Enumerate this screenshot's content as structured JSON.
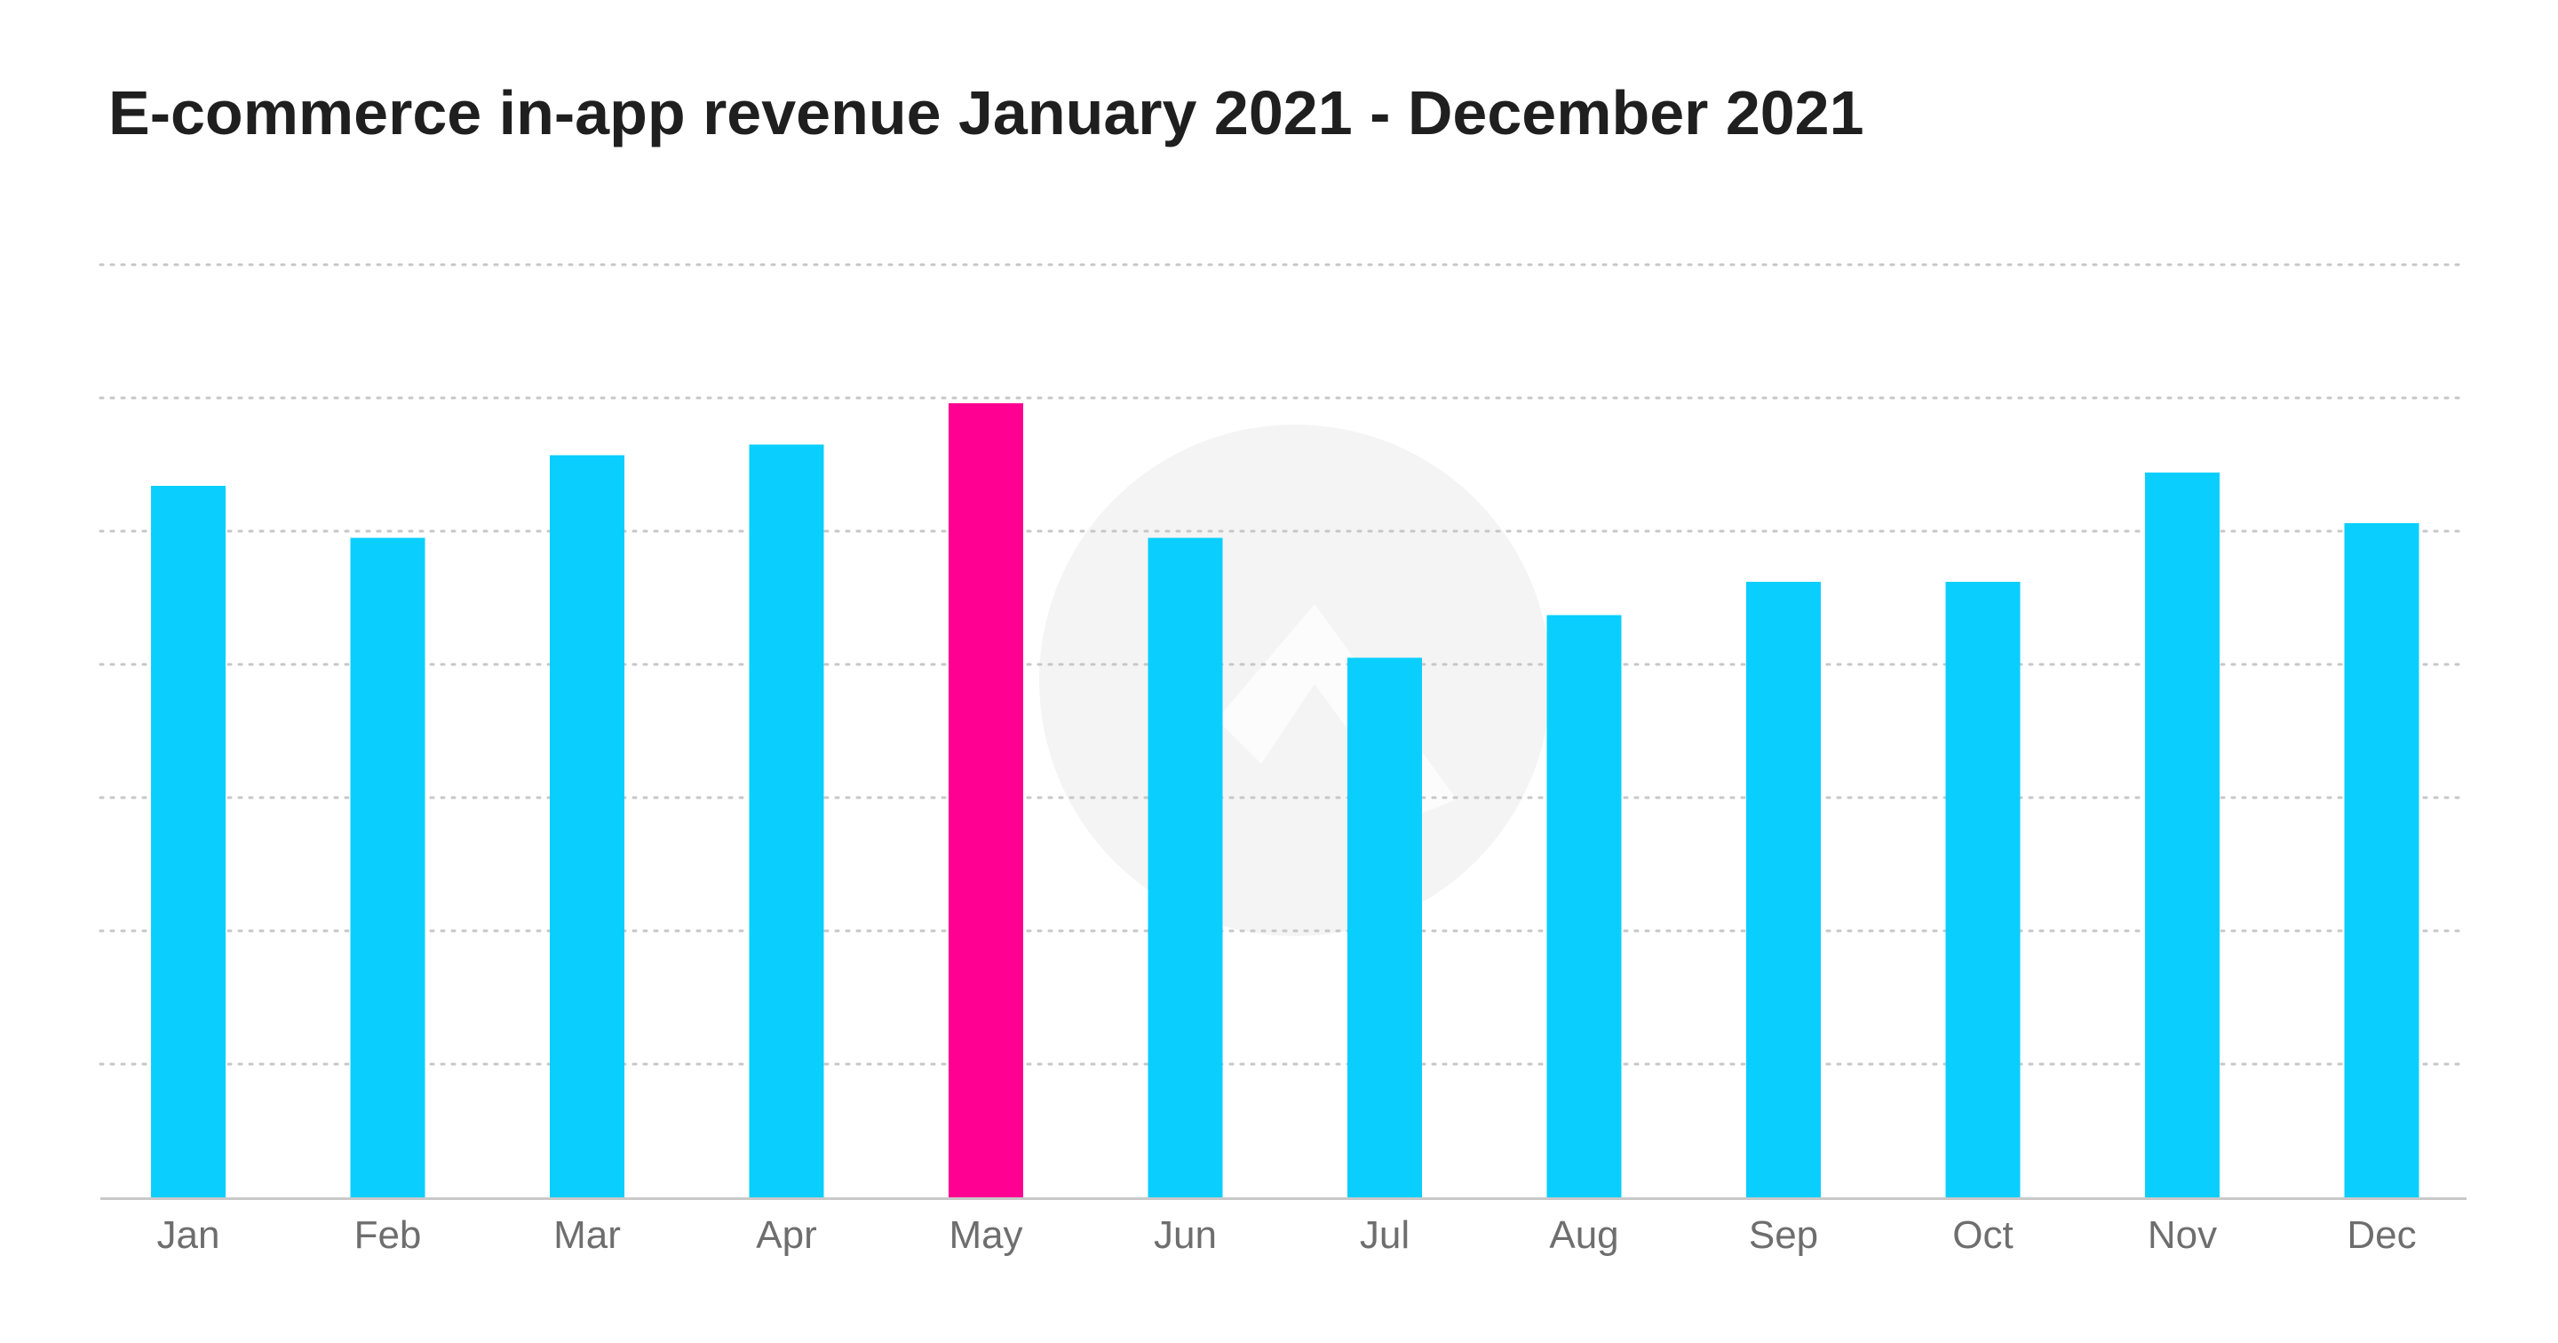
{
  "chart_data": {
    "type": "bar",
    "title": "E-commerce in-app revenue January 2021 - December 2021",
    "xlabel": "",
    "ylabel": "",
    "categories": [
      "Jan",
      "Feb",
      "Mar",
      "Apr",
      "May",
      "Jun",
      "Jul",
      "Aug",
      "Sep",
      "Oct",
      "Nov",
      "Dec"
    ],
    "values": [
      5.34,
      4.95,
      5.57,
      5.65,
      5.96,
      4.95,
      4.05,
      4.37,
      4.62,
      4.62,
      5.44,
      5.06
    ],
    "ylim": [
      0,
      7
    ],
    "y_gridlines": [
      1,
      2,
      3,
      4,
      5,
      6,
      7
    ],
    "y_tick_labels_shown": false,
    "grid": true,
    "grid_style": "dotted horizontal",
    "legend": "none",
    "highlight_category": "May",
    "colors": {
      "bar": "#0acffe",
      "highlight": "#ff0092",
      "grid": "#c7c7c7",
      "axis": "#c9c9c9",
      "title": "#1f1f1f",
      "tick_label": "#6e6e6e",
      "watermark": "#f4f4f4"
    },
    "watermark_icon": "app-logo-watermark-icon"
  }
}
